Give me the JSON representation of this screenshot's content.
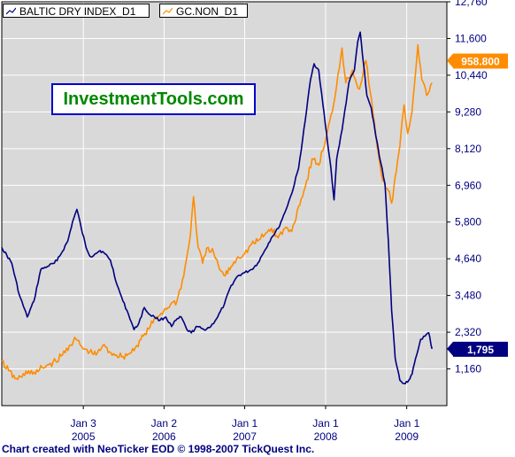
{
  "legend": {
    "bdi_label": "BALTIC DRY INDEX_D1",
    "gc_label": "GC.NON_D1"
  },
  "brand": "InvestmentTools.com",
  "footer": "Chart created with NeoTicker EOD © 1998-2007 TickQuest Inc.",
  "colors": {
    "bdi": "#000080",
    "gc": "#ff8c00",
    "plot_bg": "#d9d9d9",
    "grid": "#ffffff"
  },
  "chart_data": {
    "type": "line",
    "y_axis_side": "right",
    "ylim": [
      0,
      12760
    ],
    "yticks": [
      "12,760",
      "11,600",
      "10,440",
      "9,280",
      "8,120",
      "6,960",
      "5,800",
      "4,640",
      "3,480",
      "2,320",
      "1,160"
    ],
    "yticks_values": [
      12760,
      11600,
      10440,
      9280,
      8120,
      6960,
      5800,
      4640,
      3480,
      2320,
      1160
    ],
    "xlim": [
      "2004-01-01",
      "2009-07-01"
    ],
    "xticks": [
      {
        "date": "2005-01-03",
        "month": "Jan 3",
        "year": "2005"
      },
      {
        "date": "2006-01-02",
        "month": "Jan 2",
        "year": "2006"
      },
      {
        "date": "2007-01-01",
        "month": "Jan 1",
        "year": "2007"
      },
      {
        "date": "2008-01-01",
        "month": "Jan 1",
        "year": "2008"
      },
      {
        "date": "2009-01-01",
        "month": "Jan 1",
        "year": "2009"
      }
    ],
    "grid": true,
    "legend_position": "top-left",
    "last_labels": [
      {
        "series": "GC.NON_D1",
        "text": "958.800"
      },
      {
        "series": "BALTIC DRY INDEX_D1",
        "text": "1,795"
      }
    ],
    "series": [
      {
        "name": "BALTIC DRY INDEX_D1",
        "points": [
          [
            "2004-01-01",
            5000
          ],
          [
            "2004-02-15",
            4500
          ],
          [
            "2004-03-20",
            3500
          ],
          [
            "2004-04-25",
            2800
          ],
          [
            "2004-05-25",
            3300
          ],
          [
            "2004-06-25",
            4300
          ],
          [
            "2004-07-25",
            4400
          ],
          [
            "2004-08-25",
            4500
          ],
          [
            "2004-09-25",
            4800
          ],
          [
            "2004-10-25",
            5200
          ],
          [
            "2004-11-15",
            5800
          ],
          [
            "2004-12-05",
            6200
          ],
          [
            "2004-12-25",
            5600
          ],
          [
            "2005-01-15",
            5000
          ],
          [
            "2005-02-05",
            4700
          ],
          [
            "2005-02-25",
            4800
          ],
          [
            "2005-03-20",
            4900
          ],
          [
            "2005-04-10",
            4800
          ],
          [
            "2005-05-05",
            4600
          ],
          [
            "2005-06-05",
            3800
          ],
          [
            "2005-07-01",
            3300
          ],
          [
            "2005-07-25",
            2900
          ],
          [
            "2005-08-20",
            2400
          ],
          [
            "2005-09-10",
            2600
          ],
          [
            "2005-10-05",
            3100
          ],
          [
            "2005-10-25",
            2900
          ],
          [
            "2005-11-20",
            2800
          ],
          [
            "2005-12-15",
            2700
          ],
          [
            "2006-01-10",
            2800
          ],
          [
            "2006-02-05",
            2500
          ],
          [
            "2006-02-25",
            2700
          ],
          [
            "2006-03-20",
            2800
          ],
          [
            "2006-04-15",
            2400
          ],
          [
            "2006-05-05",
            2300
          ],
          [
            "2006-06-01",
            2500
          ],
          [
            "2006-07-01",
            2400
          ],
          [
            "2006-08-01",
            2500
          ],
          [
            "2006-09-01",
            2800
          ],
          [
            "2006-10-01",
            3200
          ],
          [
            "2006-11-01",
            3800
          ],
          [
            "2006-12-01",
            4100
          ],
          [
            "2007-01-01",
            4200
          ],
          [
            "2007-02-01",
            4300
          ],
          [
            "2007-03-01",
            4500
          ],
          [
            "2007-04-01",
            4900
          ],
          [
            "2007-05-01",
            5300
          ],
          [
            "2007-06-01",
            5600
          ],
          [
            "2007-07-01",
            6100
          ],
          [
            "2007-08-01",
            6700
          ],
          [
            "2007-09-01",
            7500
          ],
          [
            "2007-10-01",
            9000
          ],
          [
            "2007-10-25",
            10300
          ],
          [
            "2007-11-10",
            10800
          ],
          [
            "2007-12-01",
            10600
          ],
          [
            "2007-12-20",
            9500
          ],
          [
            "2008-01-10",
            8300
          ],
          [
            "2008-01-25",
            7500
          ],
          [
            "2008-02-08",
            6500
          ],
          [
            "2008-02-20",
            7800
          ],
          [
            "2008-03-15",
            8700
          ],
          [
            "2008-04-15",
            10200
          ],
          [
            "2008-05-10",
            10600
          ],
          [
            "2008-05-25",
            11500
          ],
          [
            "2008-06-05",
            11800
          ],
          [
            "2008-06-20",
            10800
          ],
          [
            "2008-07-05",
            9800
          ],
          [
            "2008-07-25",
            9400
          ],
          [
            "2008-08-15",
            8500
          ],
          [
            "2008-09-05",
            7700
          ],
          [
            "2008-09-25",
            7000
          ],
          [
            "2008-10-10",
            5200
          ],
          [
            "2008-10-25",
            3000
          ],
          [
            "2008-11-10",
            1500
          ],
          [
            "2008-12-01",
            800
          ],
          [
            "2008-12-20",
            700
          ],
          [
            "2009-01-10",
            800
          ],
          [
            "2009-01-25",
            1000
          ],
          [
            "2009-02-15",
            1600
          ],
          [
            "2009-03-05",
            2100
          ],
          [
            "2009-03-25",
            2200
          ],
          [
            "2009-04-10",
            2300
          ],
          [
            "2009-04-25",
            1795
          ]
        ]
      },
      {
        "name": "GC.NON_D1",
        "points": [
          [
            "2004-01-01",
            1400
          ],
          [
            "2004-02-01",
            1100
          ],
          [
            "2004-03-01",
            850
          ],
          [
            "2004-04-01",
            900
          ],
          [
            "2004-05-01",
            1100
          ],
          [
            "2004-06-01",
            1000
          ],
          [
            "2004-07-01",
            1200
          ],
          [
            "2004-08-01",
            1300
          ],
          [
            "2004-09-01",
            1400
          ],
          [
            "2004-10-01",
            1600
          ],
          [
            "2004-11-01",
            1900
          ],
          [
            "2004-12-01",
            2100
          ],
          [
            "2005-01-01",
            1800
          ],
          [
            "2005-02-01",
            1700
          ],
          [
            "2005-03-01",
            1600
          ],
          [
            "2005-04-01",
            1900
          ],
          [
            "2005-05-01",
            1700
          ],
          [
            "2005-06-01",
            1600
          ],
          [
            "2005-07-01",
            1550
          ],
          [
            "2005-08-01",
            1650
          ],
          [
            "2005-09-01",
            1900
          ],
          [
            "2005-10-01",
            2200
          ],
          [
            "2005-11-01",
            2500
          ],
          [
            "2005-12-01",
            2800
          ],
          [
            "2006-01-01",
            3000
          ],
          [
            "2006-02-01",
            3200
          ],
          [
            "2006-03-01",
            3300
          ],
          [
            "2006-04-01",
            4100
          ],
          [
            "2006-05-01",
            5400
          ],
          [
            "2006-05-15",
            6600
          ],
          [
            "2006-06-05",
            5000
          ],
          [
            "2006-06-25",
            4500
          ],
          [
            "2006-07-20",
            5000
          ],
          [
            "2006-08-15",
            4800
          ],
          [
            "2006-09-10",
            4300
          ],
          [
            "2006-10-05",
            4100
          ],
          [
            "2006-11-01",
            4400
          ],
          [
            "2006-12-01",
            4700
          ],
          [
            "2007-01-01",
            4800
          ],
          [
            "2007-02-01",
            5100
          ],
          [
            "2007-03-01",
            5200
          ],
          [
            "2007-04-01",
            5400
          ],
          [
            "2007-05-01",
            5600
          ],
          [
            "2007-06-01",
            5300
          ],
          [
            "2007-07-01",
            5600
          ],
          [
            "2007-08-01",
            5500
          ],
          [
            "2007-09-01",
            6300
          ],
          [
            "2007-10-01",
            6900
          ],
          [
            "2007-11-01",
            7800
          ],
          [
            "2007-12-01",
            7600
          ],
          [
            "2008-01-01",
            8400
          ],
          [
            "2008-02-01",
            9300
          ],
          [
            "2008-03-15",
            11300
          ],
          [
            "2008-04-01",
            10200
          ],
          [
            "2008-05-01",
            10600
          ],
          [
            "2008-06-01",
            10000
          ],
          [
            "2008-07-01",
            10900
          ],
          [
            "2008-08-01",
            9300
          ],
          [
            "2008-08-20",
            8200
          ],
          [
            "2008-09-15",
            7100
          ],
          [
            "2008-10-10",
            6800
          ],
          [
            "2008-10-25",
            6400
          ],
          [
            "2008-11-15",
            7400
          ],
          [
            "2008-12-01",
            8200
          ],
          [
            "2008-12-20",
            9500
          ],
          [
            "2009-01-05",
            8600
          ],
          [
            "2009-01-25",
            9300
          ],
          [
            "2009-02-20",
            11400
          ],
          [
            "2009-03-10",
            10300
          ],
          [
            "2009-04-01",
            9800
          ],
          [
            "2009-04-25",
            10200
          ]
        ]
      }
    ]
  }
}
